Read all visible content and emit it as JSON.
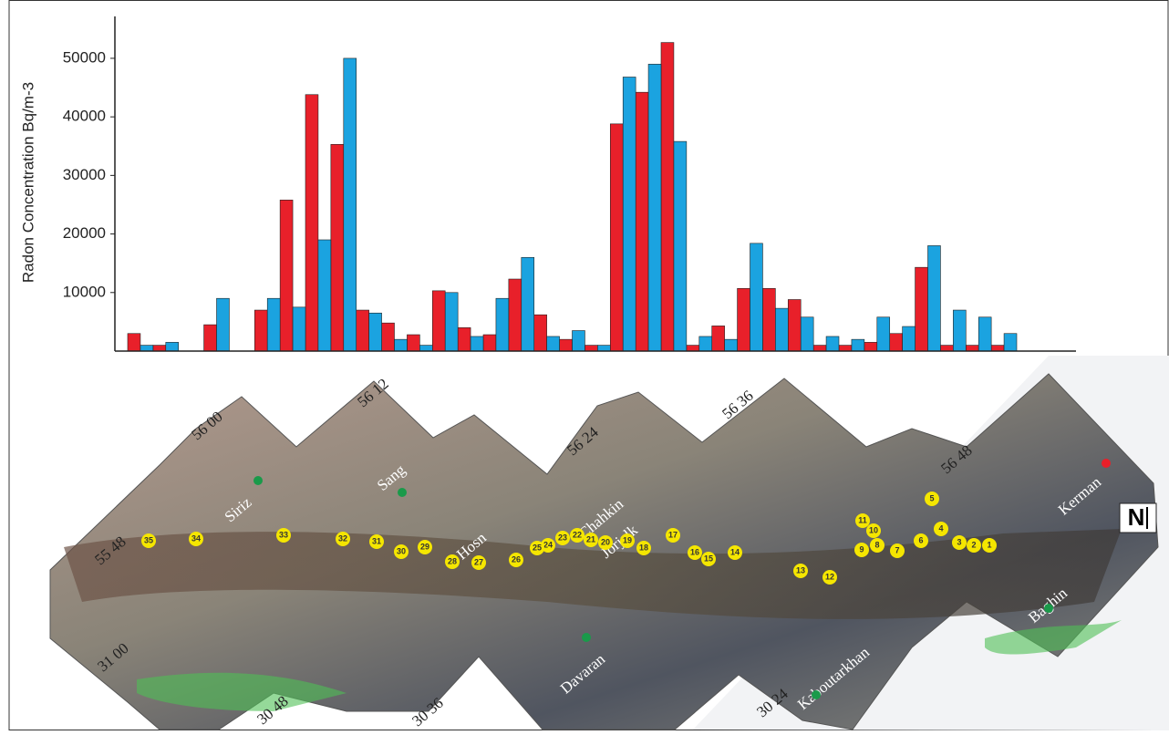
{
  "chart_data": {
    "type": "bar",
    "y_label": "Radon Concentration Bq/m-3",
    "categories": [
      null,
      null,
      null,
      null,
      null,
      null,
      null,
      null,
      null,
      null,
      null,
      null,
      null,
      null,
      null,
      null,
      null,
      null,
      null,
      null,
      null,
      null,
      null,
      null,
      null,
      null,
      null,
      null,
      null,
      null,
      null,
      null,
      null,
      null,
      null
    ],
    "series": [
      {
        "color": "#e8202a",
        "values": [
          3000,
          1000,
          null,
          4500,
          null,
          7000,
          25800,
          43800,
          35300,
          7000,
          4800,
          2800,
          10300,
          4000,
          2800,
          12300,
          6200,
          2000,
          1000,
          38800,
          44200,
          52700,
          1000,
          4300,
          10700,
          10700,
          8800,
          1000,
          1000,
          1500,
          3000,
          14300,
          1000,
          1000,
          1000
        ]
      },
      {
        "color": "#1ba3e0",
        "values": [
          1000,
          1500,
          null,
          9000,
          null,
          9000,
          7500,
          19000,
          50000,
          6500,
          2000,
          1000,
          10000,
          2500,
          9000,
          16000,
          2500,
          3500,
          1000,
          46800,
          49000,
          35800,
          2500,
          2000,
          18400,
          7300,
          5800,
          2500,
          2000,
          5800,
          4200,
          18000,
          7000,
          5800,
          3000
        ]
      }
    ],
    "ylim": [
      0,
      58400
    ],
    "yticks": [
      10000,
      20000,
      30000,
      40000,
      50000
    ]
  },
  "map": {
    "coordinates": [
      "55 48",
      "56 00",
      "56 12",
      "56 24",
      "56 36",
      "56 48",
      "31 00",
      "30 48",
      "30 36",
      "30 24"
    ],
    "places": [
      "Siriz",
      "Sang",
      "Hosn",
      "Chahkin",
      "Jorjalk",
      "Davaran",
      "Kaboutarkhan",
      "Baghin",
      "Kerman"
    ],
    "stations": [
      "1",
      "2",
      "3",
      "4",
      "5",
      "6",
      "7",
      "8",
      "9",
      "10",
      "11",
      "12",
      "13",
      "14",
      "15",
      "16",
      "17",
      "18",
      "19",
      "20",
      "21",
      "22",
      "23",
      "24",
      "25",
      "26",
      "27",
      "28",
      "29",
      "30",
      "31",
      "32",
      "33",
      "34",
      "35"
    ],
    "north": "N"
  }
}
